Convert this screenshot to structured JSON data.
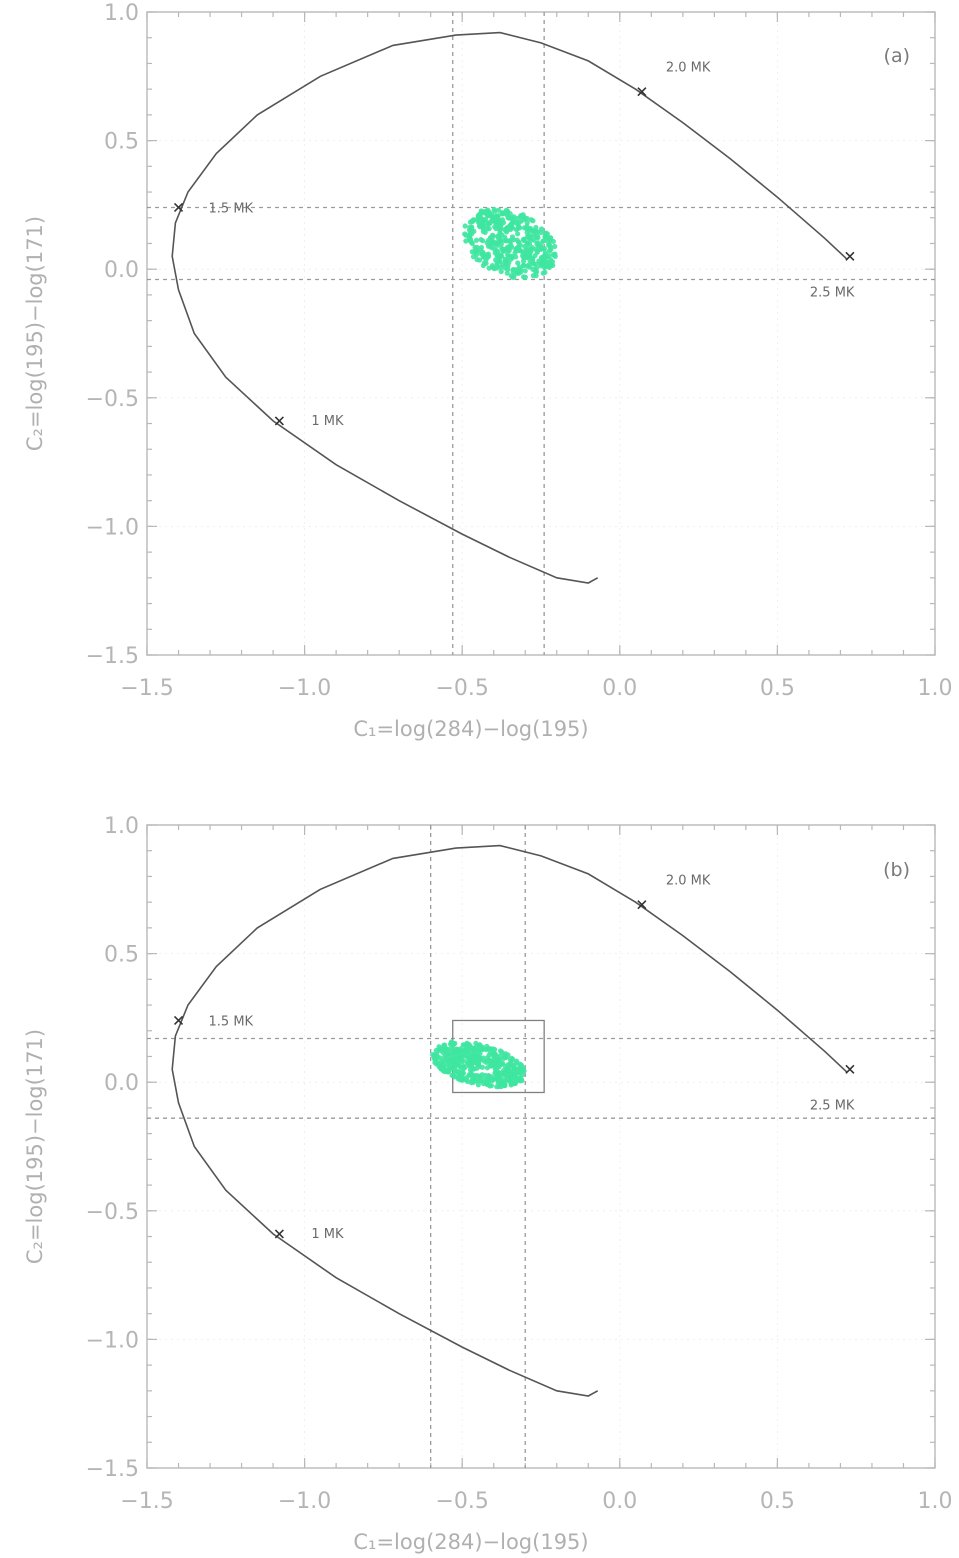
{
  "chart_data": [
    {
      "type": "line",
      "panel_label": "(a)",
      "xlabel": "C₁=log(284)−log(195)",
      "ylabel": "C₂=log(195)−log(171)",
      "xlim": [
        -1.5,
        1.0
      ],
      "ylim": [
        -1.5,
        1.0
      ],
      "xticks": [
        -1.5,
        -1.0,
        -0.5,
        0.0,
        0.5,
        1.0
      ],
      "yticks": [
        -1.5,
        -1.0,
        -0.5,
        0.0,
        0.5,
        1.0
      ],
      "xtick_labels": [
        "−1.5",
        "−1.0",
        "−0.5",
        "0.0",
        "0.5",
        "1.0"
      ],
      "ytick_labels": [
        "−1.5",
        "−1.0",
        "−0.5",
        "0.0",
        "0.5",
        "1.0"
      ],
      "grid": true,
      "series": [
        {
          "x": [
            -0.07,
            -0.1,
            -0.2,
            -0.35,
            -0.5,
            -0.7,
            -0.9,
            -1.1,
            -1.25,
            -1.35,
            -1.4,
            -1.42,
            -1.41,
            -1.37,
            -1.28,
            -1.15,
            -0.95,
            -0.72,
            -0.52,
            -0.38,
            -0.25,
            -0.1,
            0.05,
            0.2,
            0.35,
            0.5,
            0.65,
            0.72
          ],
          "y": [
            -1.2,
            -1.22,
            -1.2,
            -1.12,
            -1.03,
            -0.9,
            -0.76,
            -0.59,
            -0.42,
            -0.25,
            -0.08,
            0.05,
            0.18,
            0.3,
            0.45,
            0.6,
            0.75,
            0.87,
            0.91,
            0.92,
            0.88,
            0.81,
            0.7,
            0.57,
            0.43,
            0.28,
            0.12,
            0.04
          ]
        }
      ],
      "temperature_markers": [
        {
          "label": "1 MK",
          "x": -1.08,
          "y": -0.59
        },
        {
          "label": "1.5 MK",
          "x": -1.4,
          "y": 0.24
        },
        {
          "label": "2.0 MK",
          "x": 0.07,
          "y": 0.69
        },
        {
          "label": "2.5 MK",
          "x": 0.73,
          "y": 0.05
        }
      ],
      "reference_lines": {
        "x": [
          -0.53,
          -0.24
        ],
        "y": [
          0.24,
          -0.04
        ]
      },
      "observation_cloud": {
        "x_range": [
          -0.5,
          -0.2
        ],
        "y_range": [
          -0.03,
          0.23
        ],
        "color": "#3ee6a0"
      }
    },
    {
      "type": "line",
      "panel_label": "(b)",
      "xlabel": "C₁=log(284)−log(195)",
      "ylabel": "C₂=log(195)−log(171)",
      "xlim": [
        -1.5,
        1.0
      ],
      "ylim": [
        -1.5,
        1.0
      ],
      "xticks": [
        -1.5,
        -1.0,
        -0.5,
        0.0,
        0.5,
        1.0
      ],
      "yticks": [
        -1.5,
        -1.0,
        -0.5,
        0.0,
        0.5,
        1.0
      ],
      "xtick_labels": [
        "−1.5",
        "−1.0",
        "−0.5",
        "0.0",
        "0.5",
        "1.0"
      ],
      "ytick_labels": [
        "−1.5",
        "−1.0",
        "−0.5",
        "0.0",
        "0.5",
        "1.0"
      ],
      "grid": true,
      "series": [
        {
          "x": [
            -0.07,
            -0.1,
            -0.2,
            -0.35,
            -0.5,
            -0.7,
            -0.9,
            -1.1,
            -1.25,
            -1.35,
            -1.4,
            -1.42,
            -1.41,
            -1.37,
            -1.28,
            -1.15,
            -0.95,
            -0.72,
            -0.52,
            -0.38,
            -0.25,
            -0.1,
            0.05,
            0.2,
            0.35,
            0.5,
            0.65,
            0.72
          ],
          "y": [
            -1.2,
            -1.22,
            -1.2,
            -1.12,
            -1.03,
            -0.9,
            -0.76,
            -0.59,
            -0.42,
            -0.25,
            -0.08,
            0.05,
            0.18,
            0.3,
            0.45,
            0.6,
            0.75,
            0.87,
            0.91,
            0.92,
            0.88,
            0.81,
            0.7,
            0.57,
            0.43,
            0.28,
            0.12,
            0.04
          ]
        }
      ],
      "temperature_markers": [
        {
          "label": "1 MK",
          "x": -1.08,
          "y": -0.59
        },
        {
          "label": "1.5 MK",
          "x": -1.4,
          "y": 0.24
        },
        {
          "label": "2.0 MK",
          "x": 0.07,
          "y": 0.69
        },
        {
          "label": "2.5 MK",
          "x": 0.73,
          "y": 0.05
        }
      ],
      "reference_lines": {
        "x": [
          -0.6,
          -0.3
        ],
        "y": [
          0.17,
          -0.14
        ]
      },
      "box": {
        "x": [
          -0.53,
          -0.24
        ],
        "y": [
          -0.04,
          0.24
        ]
      },
      "observation_cloud": {
        "x_range": [
          -0.6,
          -0.3
        ],
        "y_range": [
          -0.01,
          0.15
        ],
        "color": "#3ee6a0"
      }
    }
  ]
}
